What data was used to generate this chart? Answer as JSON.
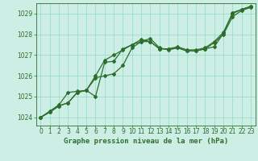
{
  "xlabel": "Graphe pression niveau de la mer (hPa)",
  "bg_color": "#cceee4",
  "grid_color": "#99ddcc",
  "line_color": "#2d6e2d",
  "xlim": [
    -0.5,
    23.5
  ],
  "ylim": [
    1023.6,
    1029.5
  ],
  "yticks": [
    1024,
    1025,
    1026,
    1027,
    1028,
    1029
  ],
  "xticks": [
    0,
    1,
    2,
    3,
    4,
    5,
    6,
    7,
    8,
    9,
    10,
    11,
    12,
    13,
    14,
    15,
    16,
    17,
    18,
    19,
    20,
    21,
    22,
    23
  ],
  "series1_x": [
    0,
    1,
    2,
    3,
    4,
    5,
    6,
    7,
    8,
    9,
    10,
    11,
    12,
    13,
    14,
    15,
    16,
    17,
    18,
    19,
    20,
    21,
    22,
    23
  ],
  "series1_y": [
    1024.0,
    1024.3,
    1024.6,
    1025.2,
    1025.25,
    1025.3,
    1025.0,
    1026.65,
    1026.7,
    1027.3,
    1027.5,
    1027.75,
    1027.65,
    1027.3,
    1027.3,
    1027.35,
    1027.2,
    1027.2,
    1027.3,
    1027.4,
    1028.05,
    1029.05,
    1029.2,
    1029.35
  ],
  "series2_x": [
    0,
    1,
    2,
    3,
    4,
    5,
    6,
    7,
    8,
    9,
    10,
    11,
    12,
    13,
    14,
    15,
    16,
    17,
    18,
    19,
    20,
    21,
    22,
    23
  ],
  "series2_y": [
    1024.0,
    1024.25,
    1024.55,
    1024.7,
    1025.2,
    1025.3,
    1025.9,
    1026.0,
    1026.1,
    1026.5,
    1027.35,
    1027.65,
    1027.8,
    1027.35,
    1027.25,
    1027.35,
    1027.2,
    1027.2,
    1027.3,
    1027.6,
    1028.0,
    1028.85,
    1029.15,
    1029.3
  ],
  "series3_x": [
    0,
    1,
    2,
    3,
    4,
    5,
    6,
    7,
    8,
    9,
    10,
    11,
    12,
    13,
    14,
    15,
    16,
    17,
    18,
    19,
    20,
    21,
    22,
    23
  ],
  "series3_y": [
    1024.0,
    1024.25,
    1024.55,
    1024.7,
    1025.2,
    1025.3,
    1026.0,
    1026.75,
    1027.0,
    1027.25,
    1027.5,
    1027.65,
    1027.65,
    1027.3,
    1027.3,
    1027.4,
    1027.25,
    1027.25,
    1027.35,
    1027.65,
    1028.1,
    1029.0,
    1029.2,
    1029.35
  ],
  "label_fontsize": 6.5,
  "tick_fontsize": 5.5,
  "marker_size": 2.0,
  "line_width": 0.9
}
